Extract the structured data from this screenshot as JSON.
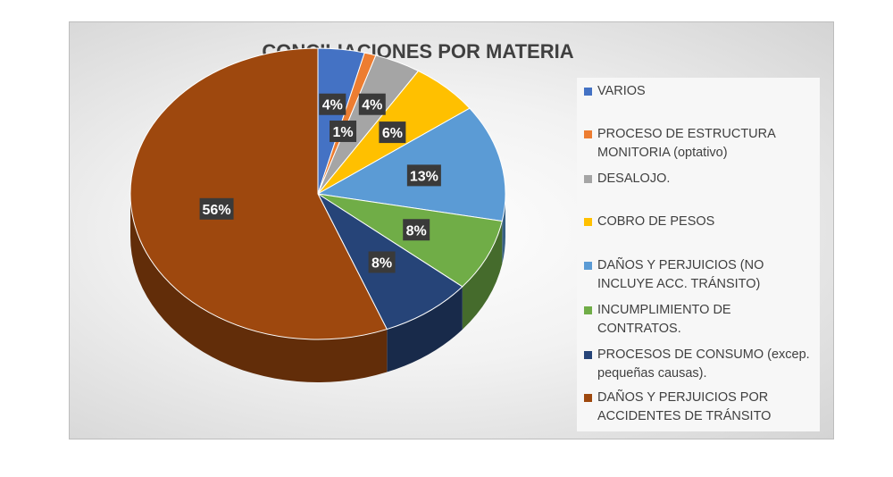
{
  "chart_data": {
    "type": "pie",
    "title": "CONCILIACIONES POR MATERIA",
    "legend_position": "right",
    "slices": [
      {
        "label": "VARIOS",
        "value": 4,
        "display": "4%",
        "color": "#4472c4"
      },
      {
        "label": "PROCESO DE ESTRUCTURA MONITORIA (optativo)",
        "value": 1,
        "display": "1%",
        "color": "#ed7d31"
      },
      {
        "label": "DESALOJO.",
        "value": 4,
        "display": "4%",
        "color": "#a5a5a5"
      },
      {
        "label": "COBRO DE PESOS",
        "value": 6,
        "display": "6%",
        "color": "#ffc000"
      },
      {
        "label": "DAÑOS Y PERJUICIOS (NO INCLUYE ACC. TRÁNSITO)",
        "value": 13,
        "display": "13%",
        "color": "#5b9bd5"
      },
      {
        "label": "INCUMPLIMIENTO DE CONTRATOS.",
        "value": 8,
        "display": "8%",
        "color": "#70ad47"
      },
      {
        "label": "PROCESOS DE CONSUMO (excep. pequeñas causas).",
        "value": 8,
        "display": "8%",
        "color": "#264478"
      },
      {
        "label": "DAÑOS Y PERJUICIOS POR ACCIDENTES DE TRÁNSITO",
        "value": 56,
        "display": "56%",
        "color": "#9e480e"
      }
    ]
  }
}
